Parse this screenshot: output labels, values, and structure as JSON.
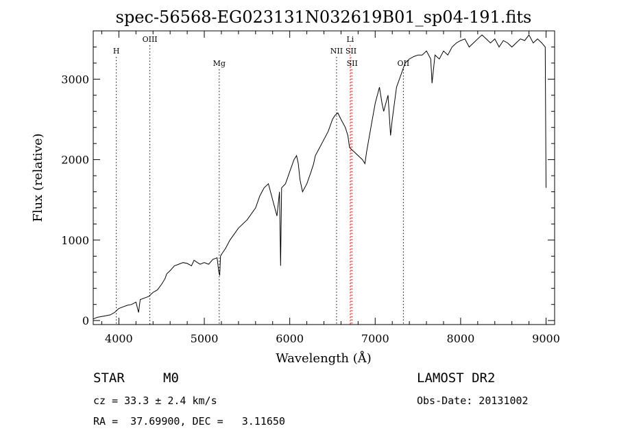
{
  "chart_data": {
    "type": "line",
    "title": "spec-56568-EG023131N032619B01_sp04-191.fits",
    "xlabel": "Wavelength (Å)",
    "ylabel": "Flux (relative)",
    "xlim": [
      3700,
      9100
    ],
    "ylim": [
      -50,
      3600
    ],
    "xticks": [
      4000,
      5000,
      6000,
      7000,
      8000,
      9000
    ],
    "yticks": [
      0,
      1000,
      2000,
      3000
    ],
    "grid": false,
    "series": [
      {
        "x": [
          3700,
          3750,
          3800,
          3850,
          3900,
          3950,
          4000,
          4050,
          4100,
          4150,
          4200,
          4230,
          4250,
          4300,
          4350,
          4400,
          4450,
          4500,
          4540,
          4560,
          4600,
          4650,
          4700,
          4750,
          4800,
          4850,
          4880,
          4920,
          4950,
          5000,
          5050,
          5100,
          5150,
          5170,
          5180,
          5190,
          5200,
          5250,
          5300,
          5400,
          5500,
          5600,
          5650,
          5700,
          5750,
          5800,
          5850,
          5880,
          5893,
          5905,
          5950,
          6000,
          6050,
          6080,
          6100,
          6120,
          6150,
          6200,
          6250,
          6280,
          6300,
          6350,
          6400,
          6450,
          6500,
          6530,
          6563,
          6600,
          6650,
          6680,
          6700,
          6750,
          6800,
          6850,
          6880,
          6900,
          6950,
          7000,
          7050,
          7080,
          7100,
          7150,
          7180,
          7200,
          7250,
          7300,
          7350,
          7400,
          7450,
          7500,
          7550,
          7600,
          7650,
          7665,
          7700,
          7750,
          7800,
          7850,
          7900,
          7950,
          8000,
          8050,
          8100,
          8150,
          8200,
          8250,
          8300,
          8350,
          8400,
          8450,
          8500,
          8550,
          8600,
          8650,
          8700,
          8750,
          8800,
          8850,
          8900,
          8950,
          8990,
          9000
        ],
        "values": [
          20,
          40,
          50,
          60,
          70,
          100,
          150,
          170,
          190,
          200,
          230,
          100,
          260,
          280,
          300,
          350,
          380,
          450,
          520,
          580,
          620,
          680,
          700,
          720,
          710,
          680,
          750,
          720,
          700,
          720,
          700,
          760,
          780,
          600,
          560,
          800,
          820,
          900,
          1000,
          1150,
          1250,
          1400,
          1550,
          1650,
          1700,
          1500,
          1300,
          1600,
          680,
          1650,
          1700,
          1850,
          2000,
          2050,
          1950,
          1750,
          1600,
          1700,
          1850,
          1950,
          2050,
          2150,
          2250,
          2350,
          2500,
          2550,
          2580,
          2500,
          2400,
          2300,
          2150,
          2100,
          2050,
          2000,
          1950,
          2100,
          2400,
          2700,
          2900,
          2700,
          2600,
          2800,
          2300,
          2500,
          2900,
          3050,
          3200,
          3250,
          3280,
          3300,
          3300,
          3350,
          3250,
          2950,
          3300,
          3250,
          3350,
          3300,
          3400,
          3450,
          3480,
          3500,
          3400,
          3450,
          3500,
          3550,
          3500,
          3450,
          3500,
          3400,
          3480,
          3450,
          3400,
          3450,
          3500,
          3480,
          3550,
          3450,
          3500,
          3450,
          3400,
          1650
        ]
      }
    ],
    "line_markers": [
      {
        "label": "H",
        "x": 3970,
        "color": "#000000",
        "label_row": 1
      },
      {
        "label": "OIII",
        "x": 4363,
        "color": "#000000",
        "label_row": 0
      },
      {
        "label": "Mg",
        "x": 5175,
        "color": "#000000",
        "label_row": 2
      },
      {
        "label": "NII",
        "x": 6548,
        "color": "#000000",
        "label_row": 1
      },
      {
        "label": "Li",
        "x": 6708,
        "color": "#ff0000",
        "label_row": 0
      },
      {
        "label": "SII",
        "x": 6717,
        "color": "#ff0000",
        "label_row": 1
      },
      {
        "label": "SII",
        "x": 6731,
        "color": "#ff0000",
        "label_row": 2
      },
      {
        "label": "OII",
        "x": 7330,
        "color": "#000000",
        "label_row": 2
      }
    ]
  },
  "info": {
    "class_label": "STAR",
    "subclass": "M0",
    "survey": "LAMOST DR2",
    "redshift": "cz = 33.3 ± 2.4 km/s",
    "obs_date": "Obs-Date: 20131002",
    "coords": "RA =  37.69900, DEC =   3.11650"
  }
}
